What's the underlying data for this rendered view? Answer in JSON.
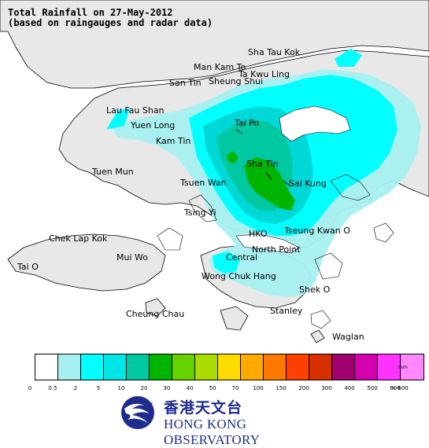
{
  "map": {
    "title_line1": "Total Rainfall on 27-May-2012",
    "title_line2": "(based on raingauges and radar data)",
    "places": [
      "Sha Tau Kok",
      "Man Kam To",
      "Ta Kwu Ling",
      "San Tin",
      "Sheung Shui",
      "Lau Fau Shan",
      "Yuen Long",
      "Tai Po",
      "Kam Tin",
      "Tuen Mun",
      "Sha Tin",
      "Tsuen Wan",
      "Sai Kung",
      "Tsing Yi",
      "Chek Lap Kok",
      "HKO",
      "Tseung Kwan O",
      "Mui Wo",
      "North Point",
      "Tai O",
      "Central",
      "Wong Chuk Hang",
      "Shek O",
      "Cheung Chau",
      "Stanley",
      "Waglan"
    ]
  },
  "legend": {
    "unit": "mm",
    "ticks": [
      "0",
      "0.5",
      "2",
      "5",
      "10",
      "20",
      "30",
      "40",
      "50",
      "70",
      "100",
      "150",
      "200",
      "300",
      "400",
      "500",
      "600",
      "> 600"
    ],
    "colors": [
      "#ffffff",
      "#a8f0f0",
      "#00ffff",
      "#00e6e6",
      "#00c8a0",
      "#00b400",
      "#66d200",
      "#aadc00",
      "#ffdc00",
      "#ffaa00",
      "#ff7800",
      "#ff4000",
      "#d83000",
      "#a00070",
      "#d400b0",
      "#ff32ff",
      "#ff88ff",
      "#ffd8ff"
    ]
  },
  "logo": {
    "name_zh": "香港天文台",
    "name_en": "HONG KONG OBSERVATORY"
  }
}
